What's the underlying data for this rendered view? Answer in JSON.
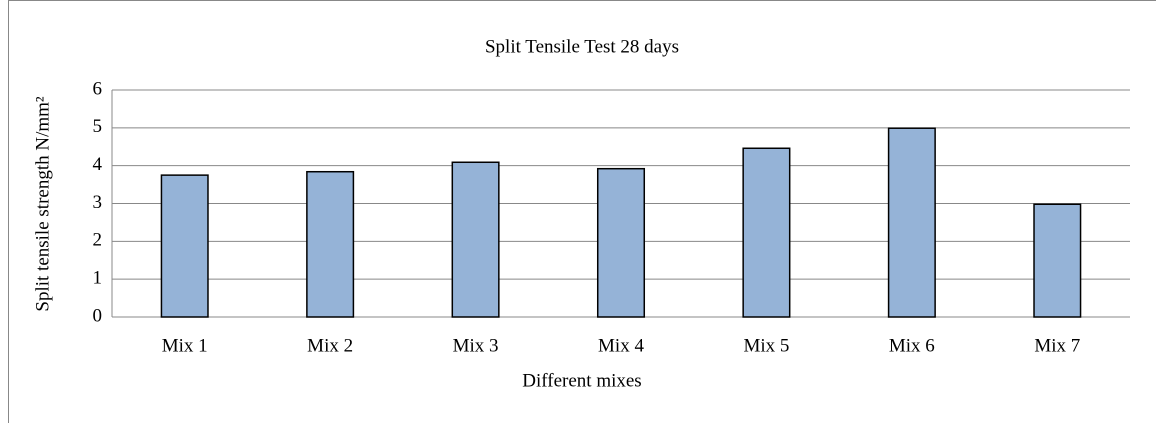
{
  "chart_data": {
    "type": "bar",
    "title": "Split Tensile Test 28 days",
    "xlabel": "Different mixes",
    "ylabel": "Split tensile strength N/mm²",
    "categories": [
      "Mix 1",
      "Mix 2",
      "Mix 3",
      "Mix 4",
      "Mix 5",
      "Mix 6",
      "Mix 7"
    ],
    "values": [
      3.75,
      3.84,
      4.09,
      3.92,
      4.46,
      4.99,
      2.98
    ],
    "color": "#95b3d7",
    "ylim": [
      0,
      6
    ],
    "yticks": [
      0,
      1,
      2,
      3,
      4,
      5,
      6
    ],
    "grid": true
  }
}
